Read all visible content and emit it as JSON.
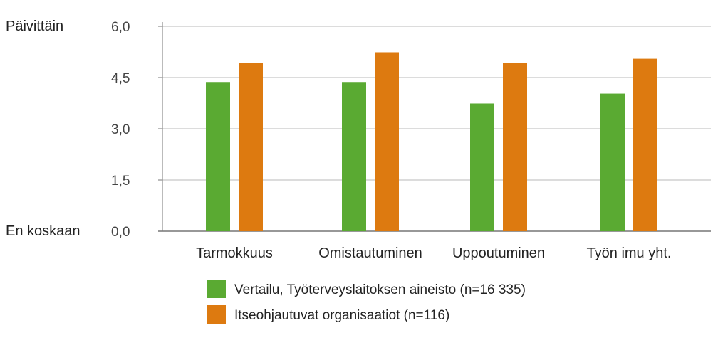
{
  "chart_data": {
    "type": "bar",
    "categories": [
      "Tarmokkuus",
      "Omistautuminen",
      "Uppoutuminen",
      "Työn imu yht."
    ],
    "series": [
      {
        "name": "Vertailu, Työterveyslaitoksen aineisto (n=16 335)",
        "color": "#5aaa32",
        "values": [
          4.37,
          4.37,
          3.74,
          4.03
        ]
      },
      {
        "name": "Itseohjautuvat organisaatiot (n=116)",
        "color": "#dd7a10",
        "values": [
          4.92,
          5.24,
          4.92,
          5.05
        ]
      }
    ],
    "yticks": [
      "6,0",
      "4,5",
      "3,0",
      "1,5",
      "0,0"
    ],
    "ytick_values": [
      6.0,
      4.5,
      3.0,
      1.5,
      0.0
    ],
    "ylim": [
      0,
      6
    ],
    "y_top_label": "Päivittäin",
    "y_bottom_label": "En koskaan",
    "grid": true,
    "legend_position": "bottom"
  }
}
